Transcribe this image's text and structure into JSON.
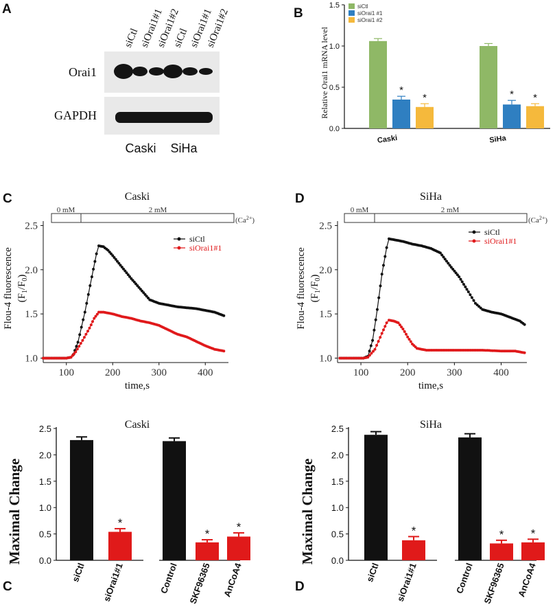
{
  "panels": {
    "A": "A",
    "B": "B",
    "C": "C",
    "D": "D",
    "E": "C",
    "F": "D"
  },
  "blot": {
    "lanes": [
      "siCtl",
      "siOrai1#1",
      "siOrai1#2",
      "siCtl",
      "siOrai1#1",
      "siOrai1#2"
    ],
    "rows": [
      "Orai1",
      "GAPDH"
    ],
    "cells": [
      "Caski",
      "SiHa"
    ]
  },
  "chart_data": [
    {
      "id": "mrna",
      "type": "bar",
      "categories": [
        "Caski",
        "SiHa"
      ],
      "series": [
        {
          "name": "siCtl",
          "color": "#8fb866",
          "values": [
            1.06,
            1.0
          ],
          "errors": [
            0.03,
            0.03
          ],
          "stars": [
            "",
            ""
          ]
        },
        {
          "name": "siOrai1 #1",
          "color": "#2f7fc1",
          "values": [
            0.35,
            0.29
          ],
          "errors": [
            0.04,
            0.05
          ],
          "stars": [
            "*",
            "*"
          ]
        },
        {
          "name": "siOrai1 #2",
          "color": "#f5b93c",
          "values": [
            0.26,
            0.27
          ],
          "errors": [
            0.04,
            0.03
          ],
          "stars": [
            "*",
            "*"
          ]
        }
      ],
      "ylabel": "Relative Orai1 mRNA level",
      "yticks": [
        "0.0",
        "0.5",
        "1.0",
        "1.5"
      ],
      "ylim": [
        0,
        1.5
      ]
    },
    {
      "id": "trace-caski",
      "type": "line",
      "title": "Caski",
      "ylabel_line1": "Flou-4 fluorescence",
      "ylabel_line2": "(F1/F0)",
      "xlabel": "time,s",
      "xlim": [
        50,
        450
      ],
      "ylim": [
        0.95,
        2.55
      ],
      "xticks": [
        "100",
        "200",
        "300",
        "400"
      ],
      "yticks": [
        "1.0",
        "1.5",
        "2.0",
        "2.5"
      ],
      "bar_labels": [
        "0 mM",
        "2 mM",
        "(Ca2+)"
      ],
      "series": [
        {
          "name": "siCtl",
          "color": "#111111",
          "points": [
            [
              50,
              1.0
            ],
            [
              100,
              1.0
            ],
            [
              110,
              1.01
            ],
            [
              115,
              1.04
            ],
            [
              125,
              1.18
            ],
            [
              140,
              1.52
            ],
            [
              155,
              1.92
            ],
            [
              165,
              2.18
            ],
            [
              170,
              2.27
            ],
            [
              180,
              2.26
            ],
            [
              190,
              2.22
            ],
            [
              200,
              2.16
            ],
            [
              220,
              2.03
            ],
            [
              240,
              1.9
            ],
            [
              260,
              1.78
            ],
            [
              280,
              1.66
            ],
            [
              300,
              1.62
            ],
            [
              320,
              1.6
            ],
            [
              340,
              1.58
            ],
            [
              360,
              1.57
            ],
            [
              380,
              1.56
            ],
            [
              400,
              1.54
            ],
            [
              420,
              1.52
            ],
            [
              440,
              1.48
            ]
          ]
        },
        {
          "name": "siOrai1#1",
          "color": "#e0191b",
          "points": [
            [
              50,
              1.0
            ],
            [
              100,
              1.0
            ],
            [
              110,
              1.01
            ],
            [
              120,
              1.07
            ],
            [
              135,
              1.2
            ],
            [
              150,
              1.34
            ],
            [
              160,
              1.45
            ],
            [
              170,
              1.52
            ],
            [
              180,
              1.52
            ],
            [
              200,
              1.5
            ],
            [
              220,
              1.47
            ],
            [
              240,
              1.45
            ],
            [
              260,
              1.42
            ],
            [
              280,
              1.4
            ],
            [
              300,
              1.37
            ],
            [
              320,
              1.32
            ],
            [
              340,
              1.27
            ],
            [
              360,
              1.24
            ],
            [
              380,
              1.19
            ],
            [
              400,
              1.14
            ],
            [
              420,
              1.1
            ],
            [
              440,
              1.08
            ]
          ]
        }
      ]
    },
    {
      "id": "trace-siha",
      "type": "line",
      "title": "SiHa",
      "ylabel_line1": "Flou-4 fluorescence",
      "ylabel_line2": "(F1/F0)",
      "xlabel": "time,s",
      "xlim": [
        50,
        455
      ],
      "ylim": [
        0.95,
        2.55
      ],
      "xticks": [
        "100",
        "200",
        "300",
        "400"
      ],
      "yticks": [
        "1.0",
        "1.5",
        "2.0",
        "2.5"
      ],
      "bar_labels": [
        "0 mM",
        "2 mM",
        "(Ca2+)"
      ],
      "series": [
        {
          "name": "siCtl",
          "color": "#111111",
          "points": [
            [
              55,
              1.0
            ],
            [
              105,
              1.0
            ],
            [
              115,
              1.02
            ],
            [
              125,
              1.2
            ],
            [
              135,
              1.55
            ],
            [
              145,
              1.95
            ],
            [
              155,
              2.25
            ],
            [
              160,
              2.35
            ],
            [
              170,
              2.34
            ],
            [
              190,
              2.32
            ],
            [
              210,
              2.29
            ],
            [
              230,
              2.27
            ],
            [
              250,
              2.24
            ],
            [
              270,
              2.19
            ],
            [
              290,
              2.05
            ],
            [
              310,
              1.92
            ],
            [
              330,
              1.75
            ],
            [
              345,
              1.62
            ],
            [
              360,
              1.55
            ],
            [
              380,
              1.52
            ],
            [
              400,
              1.5
            ],
            [
              420,
              1.46
            ],
            [
              440,
              1.42
            ],
            [
              450,
              1.38
            ]
          ]
        },
        {
          "name": "siOrai1#1",
          "color": "#e0191b",
          "points": [
            [
              55,
              1.0
            ],
            [
              105,
              1.0
            ],
            [
              115,
              1.01
            ],
            [
              130,
              1.1
            ],
            [
              145,
              1.28
            ],
            [
              155,
              1.4
            ],
            [
              160,
              1.43
            ],
            [
              170,
              1.42
            ],
            [
              180,
              1.4
            ],
            [
              190,
              1.33
            ],
            [
              200,
              1.24
            ],
            [
              210,
              1.16
            ],
            [
              220,
              1.11
            ],
            [
              240,
              1.09
            ],
            [
              280,
              1.09
            ],
            [
              320,
              1.09
            ],
            [
              360,
              1.09
            ],
            [
              400,
              1.08
            ],
            [
              430,
              1.08
            ],
            [
              450,
              1.06
            ]
          ]
        }
      ]
    },
    {
      "id": "max-caski",
      "type": "bar",
      "title": "Caski",
      "ylabel": "Maximal  Change",
      "categories": [
        "siCtl",
        "siOrai1#1",
        "Control",
        "SKF96365",
        "AnCoA4"
      ],
      "values": [
        2.28,
        0.54,
        2.26,
        0.34,
        0.45
      ],
      "errors": [
        0.06,
        0.06,
        0.06,
        0.05,
        0.07
      ],
      "colors": [
        "#111111",
        "#e01a1a",
        "#111111",
        "#e01a1a",
        "#e01a1a"
      ],
      "stars": [
        "",
        "*",
        "",
        "*",
        "*"
      ],
      "yticks": [
        "0.0",
        "0.5",
        "1.0",
        "1.5",
        "2.0",
        "2.5"
      ],
      "ylim": [
        0,
        2.5
      ]
    },
    {
      "id": "max-siha",
      "type": "bar",
      "title": "SiHa",
      "ylabel": "Maximal  Change",
      "categories": [
        "siCtl",
        "siOrai1#1",
        "Control",
        "SKF96365",
        "AnCoA4"
      ],
      "values": [
        2.38,
        0.38,
        2.33,
        0.32,
        0.34
      ],
      "errors": [
        0.06,
        0.07,
        0.07,
        0.06,
        0.06
      ],
      "colors": [
        "#111111",
        "#e01a1a",
        "#111111",
        "#e01a1a",
        "#e01a1a"
      ],
      "stars": [
        "",
        "*",
        "",
        "*",
        "*"
      ],
      "yticks": [
        "0.0",
        "0.5",
        "1.0",
        "1.5",
        "2.0",
        "2.5"
      ],
      "ylim": [
        0,
        2.5
      ]
    }
  ]
}
